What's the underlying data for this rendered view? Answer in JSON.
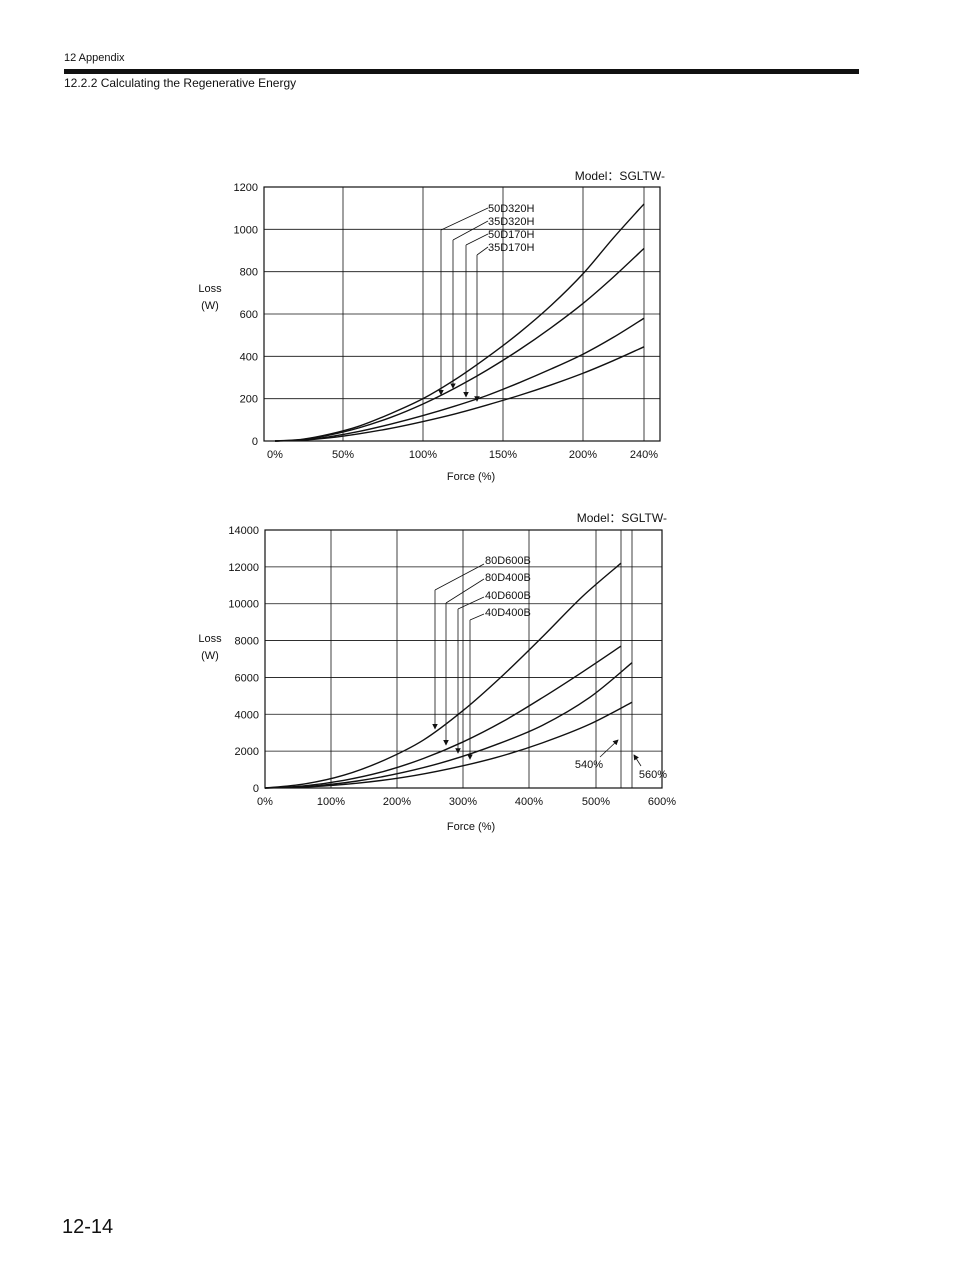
{
  "header": {
    "chapter": "12  Appendix",
    "section": "12.2.2  Calculating the Regenerative Energy"
  },
  "page_number": "12-14",
  "chart_data": [
    {
      "type": "line",
      "title": "Model：SGLTW-",
      "xlabel": "Force (%)",
      "ylabel": [
        "Loss",
        "(W)"
      ],
      "xlim": [
        0,
        240
      ],
      "ylim": [
        0,
        1200
      ],
      "xticks": [
        0,
        50,
        100,
        150,
        200,
        240
      ],
      "xtick_labels": [
        "0%",
        "50%",
        "100%",
        "150%",
        "200%",
        "240%"
      ],
      "yticks": [
        0,
        200,
        400,
        600,
        800,
        1000,
        1200
      ],
      "ytick_labels": [
        "0",
        "200",
        "400",
        "600",
        "800",
        "1000",
        "1200"
      ],
      "grid": true,
      "series": [
        {
          "name": "50D320H",
          "x": [
            0,
            20,
            40,
            60,
            80,
            100,
            120,
            140,
            160,
            180,
            200,
            220,
            240
          ],
          "y": [
            0,
            8,
            32,
            70,
            130,
            200,
            290,
            395,
            510,
            640,
            790,
            960,
            1120
          ]
        },
        {
          "name": "35D320H",
          "x": [
            0,
            20,
            40,
            60,
            80,
            100,
            120,
            140,
            160,
            180,
            200,
            220,
            240
          ],
          "y": [
            0,
            7,
            28,
            62,
            112,
            175,
            250,
            335,
            430,
            535,
            650,
            775,
            910
          ]
        },
        {
          "name": "50D170H",
          "x": [
            0,
            20,
            40,
            60,
            80,
            100,
            120,
            140,
            160,
            180,
            200,
            220,
            240
          ],
          "y": [
            0,
            5,
            20,
            45,
            80,
            120,
            165,
            215,
            275,
            340,
            410,
            490,
            580
          ]
        },
        {
          "name": "35D170H",
          "x": [
            0,
            20,
            40,
            60,
            80,
            100,
            120,
            140,
            160,
            180,
            200,
            220,
            240
          ],
          "y": [
            0,
            4,
            15,
            34,
            60,
            92,
            128,
            170,
            215,
            265,
            320,
            380,
            445
          ]
        }
      ]
    },
    {
      "type": "line",
      "title": "Model：SGLTW-",
      "xlabel": "Force (%)",
      "ylabel": [
        "Loss",
        "(W)"
      ],
      "xlim": [
        0,
        600
      ],
      "ylim": [
        0,
        14000
      ],
      "xticks": [
        0,
        100,
        200,
        300,
        400,
        500,
        600
      ],
      "xtick_labels": [
        "0%",
        "100%",
        "200%",
        "300%",
        "400%",
        "500%",
        "600%"
      ],
      "yticks": [
        0,
        2000,
        4000,
        6000,
        8000,
        10000,
        12000,
        14000
      ],
      "ytick_labels": [
        "0",
        "2000",
        "4000",
        "6000",
        "8000",
        "10000",
        "12000",
        "14000"
      ],
      "grid": true,
      "extra_vlines": [
        540,
        560
      ],
      "annotations": [
        "540%",
        "560%"
      ],
      "series": [
        {
          "name": "80D600B",
          "x": [
            0,
            60,
            120,
            180,
            240,
            300,
            360,
            420,
            480,
            540
          ],
          "y": [
            0,
            220,
            700,
            1500,
            2600,
            4200,
            6100,
            8200,
            10400,
            12200
          ]
        },
        {
          "name": "80D400B",
          "x": [
            0,
            60,
            120,
            180,
            240,
            300,
            360,
            420,
            480,
            540
          ],
          "y": [
            0,
            120,
            420,
            900,
            1600,
            2500,
            3600,
            4900,
            6300,
            7700
          ]
        },
        {
          "name": "40D600B",
          "x": [
            0,
            70,
            140,
            210,
            280,
            350,
            420,
            490,
            560
          ],
          "y": [
            0,
            100,
            380,
            850,
            1500,
            2350,
            3400,
            4900,
            6800
          ]
        },
        {
          "name": "40D400B",
          "x": [
            0,
            70,
            140,
            210,
            280,
            350,
            420,
            490,
            560
          ],
          "y": [
            0,
            70,
            260,
            580,
            1050,
            1650,
            2450,
            3450,
            4650
          ]
        }
      ]
    }
  ]
}
